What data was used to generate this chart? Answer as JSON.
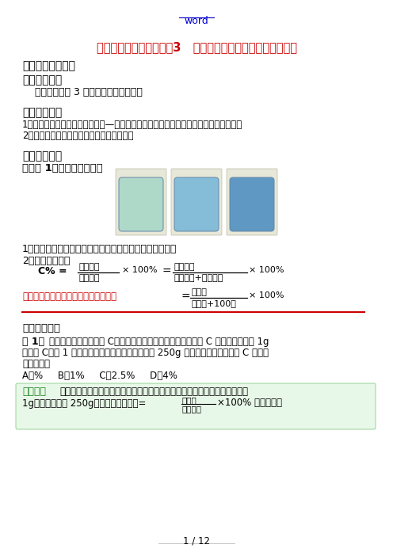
{
  "title": "九年级化学第九单元课题3   溶液中溶质的质量分数人教实验版",
  "word_link": "word",
  "bg_color": "#ffffff",
  "sections": {
    "header": "【本讲教育信息】",
    "s1_title": "一、教学内容",
    "s1_content": "    第九单元课题 3 溶液中溶质的质量分数",
    "s2_title": "二、考点清单",
    "s2_item1": "1．掌握一种溶液组成的表示方法—溶质质量分数，并能进行溶质质量分数的简单计算。",
    "s2_item2": "2．初步学会配制一定溶质质量分数的溶液。",
    "s3_title": "三、全面突破",
    "s3_kn": "知识点 1：溶质的质量分数",
    "def_text": "1．定义：溶质的质量与溶液的质量之比。用百分数表示。",
    "math_text": "2．数学表达式：",
    "formula_c": "C% =",
    "frac1_num": "溶质质量",
    "frac1_den": "溶液质量",
    "x100_1": "× 100%",
    "eq": "=",
    "frac2_num": "溶质质量",
    "frac2_den": "溶质质量+溶剂质量",
    "x100_2": "× 100%",
    "sat_label": "一定温度下饱和溶液的溶质的质量分数",
    "sat_eq": "=",
    "sat_num": "溶解度",
    "sat_den": "溶解度+100克",
    "sat_x100": "× 100%",
    "example_header": "【典型例题】",
    "example_label": "例 1：",
    "example_line1": "每天补充适量的维生素 C，有利于提高人体免疫力。某维生素 C 泡腾片，每片含 1g",
    "example_line2": "维生素 C，将 1 片泡腾片投入适量水中，最终得到 250g 溶液，此溶液中维生素 C 的质量",
    "example_line3": "分数为（）",
    "choices": "A．%     B．1%     C．2.5%     D．4%",
    "answer_header": "【解析】",
    "answer_line1": "本题考查溶液最基本的计算，根据溶质质量分数的定义进行计算。溶质质量为",
    "answer_line2": "1g，溶液质量为 250g，由溶质质量分数=",
    "ans_frac_num": "溶质量",
    "ans_frac_den": "溶液质量",
    "answer_end": "×100% 即可求得。",
    "page_num": "1 / 12",
    "tube_colors": [
      "#a8d8c8",
      "#7ab8d8",
      "#5090c0"
    ],
    "tube_bg": "#e8e8d8",
    "ans_box_edge": "#88cc88",
    "ans_box_face": "#e8f8e8",
    "red": "#cc0000",
    "blue_link": "#0000cc",
    "green_ans": "#228822"
  }
}
